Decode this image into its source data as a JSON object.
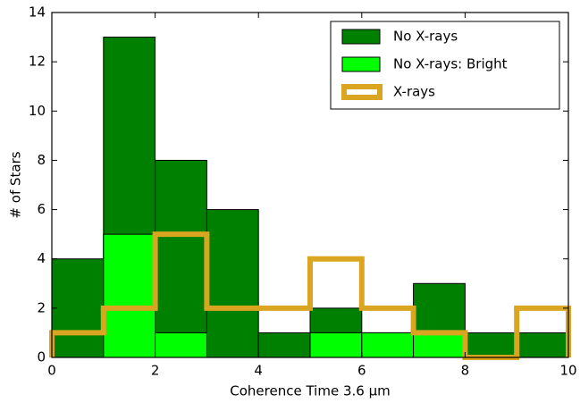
{
  "chart_data": {
    "type": "histogram",
    "xlabel": "Coherence Time 3.6 μm",
    "ylabel": "# of Stars",
    "bins": [
      0,
      1,
      2,
      3,
      4,
      5,
      6,
      7,
      8,
      9,
      10
    ],
    "series": [
      {
        "name": "No X-rays",
        "color": "#008000",
        "histtype": "bar",
        "values": [
          4,
          13,
          8,
          6,
          1,
          2,
          1,
          3,
          1,
          1
        ]
      },
      {
        "name": "No X-rays: Bright",
        "color": "#00ff00",
        "histtype": "bar",
        "values": [
          0,
          5,
          1,
          0,
          0,
          1,
          1,
          1,
          0,
          0
        ]
      },
      {
        "name": "X-rays",
        "color": "#daa520",
        "histtype": "step",
        "values": [
          1,
          2,
          5,
          2,
          2,
          4,
          2,
          1,
          0,
          2
        ]
      }
    ],
    "xlim": [
      0,
      10
    ],
    "xticks": [
      0,
      2,
      4,
      6,
      8,
      10
    ],
    "ylim": [
      0,
      14
    ],
    "yticks": [
      0,
      2,
      4,
      6,
      8,
      10,
      12,
      14
    ],
    "legend": "upper right"
  }
}
